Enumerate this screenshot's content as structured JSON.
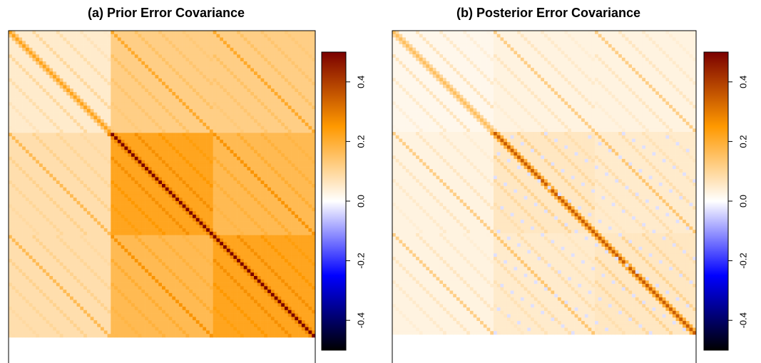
{
  "chart_data": [
    {
      "type": "heatmap",
      "title": "(a) Prior Error Covariance",
      "colorbar": {
        "range": [
          -0.5,
          0.5
        ],
        "ticks": [
          -0.4,
          -0.2,
          0.0,
          0.2,
          0.4
        ],
        "tick_labels": [
          "-0.4",
          "-0.2",
          "0.0",
          "0.2",
          "0.4"
        ],
        "colors": [
          "#000000",
          "#0000ff",
          "#ffffff",
          "#ff9900",
          "#7a0000"
        ]
      },
      "block_values": [
        [
          0.05,
          0.12,
          0.12
        ],
        [
          0.08,
          0.22,
          0.17
        ],
        [
          0.08,
          0.17,
          0.22
        ]
      ],
      "diagonal_peak": 0.5,
      "grid": false
    },
    {
      "type": "heatmap",
      "title": "(b) Posterior Error Covariance",
      "colorbar": {
        "range": [
          -0.5,
          0.5
        ],
        "ticks": [
          -0.4,
          -0.2,
          0.0,
          0.2,
          0.4
        ],
        "tick_labels": [
          "-0.4",
          "-0.2",
          "0.0",
          "0.2",
          "0.4"
        ],
        "colors": [
          "#000000",
          "#0000ff",
          "#ffffff",
          "#ff9900",
          "#7a0000"
        ]
      },
      "block_values": [
        [
          0.02,
          0.03,
          0.03
        ],
        [
          0.03,
          0.06,
          0.05
        ],
        [
          0.03,
          0.05,
          0.06
        ]
      ],
      "diagonal_peak": 0.35,
      "grid": false
    }
  ]
}
